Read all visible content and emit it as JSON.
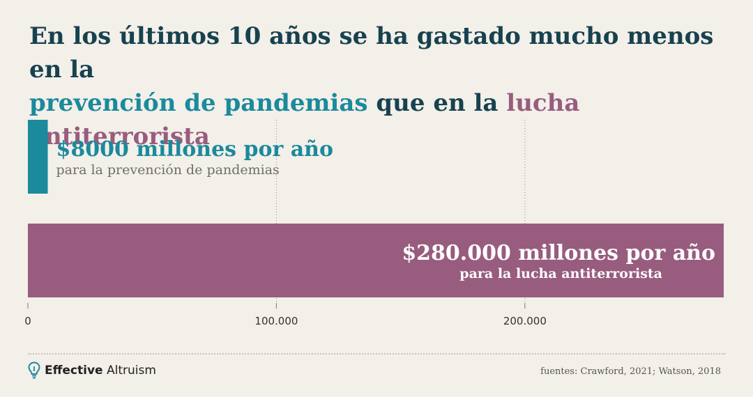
{
  "title": {
    "part1": "En los últimos 10 años se ha gastado mucho menos en la",
    "highlight1": "prevención de pandemias",
    "part2": " que en la ",
    "highlight2": "lucha antiterrorista"
  },
  "colors": {
    "teal": "#1a8a9c",
    "mauve": "#985c7e",
    "navy": "#17424f",
    "background": "#f3efe9"
  },
  "chart_data": {
    "type": "bar",
    "orientation": "horizontal",
    "xlim": [
      0,
      280000
    ],
    "xticks": [
      0,
      100000,
      200000
    ],
    "xtick_labels": [
      "0",
      "100.000",
      "200.000"
    ],
    "grid": true,
    "bars": [
      {
        "value": 8000,
        "label": "$8000 millones por año",
        "sublabel": "para la prevención de pandemias",
        "color": "#1a8a9c"
      },
      {
        "value": 280000,
        "label": "$280.000 millones por año",
        "sublabel": "para la lucha antiterrorista",
        "color": "#985c7e"
      }
    ]
  },
  "footer": {
    "brand_bold": "Effective",
    "brand_rest": " Altruism",
    "icon": "lightbulb-icon",
    "sources": "fuentes: Crawford, 2021; Watson, 2018"
  }
}
